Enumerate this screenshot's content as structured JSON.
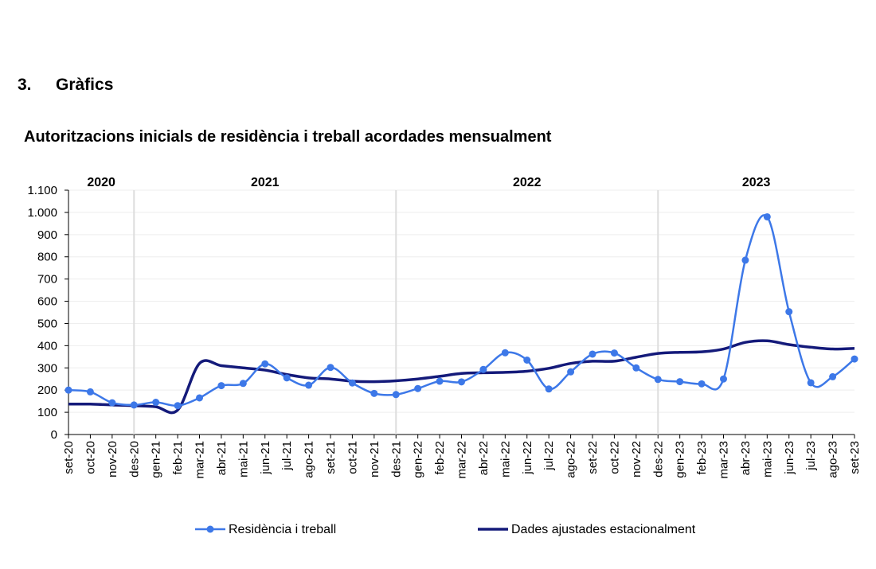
{
  "heading": {
    "number": "3.",
    "text": "Gràfics"
  },
  "chart_data": {
    "type": "line",
    "title": "Autoritzacions inicials de residència i treball acordades mensualment",
    "year_labels": [
      "2020",
      "2021",
      "2022",
      "2023"
    ],
    "categories": [
      "set-20",
      "oct-20",
      "nov-20",
      "des-20",
      "gen-21",
      "feb-21",
      "mar-21",
      "abr-21",
      "mai-21",
      "jun-21",
      "jul-21",
      "ago-21",
      "set-21",
      "oct-21",
      "nov-21",
      "des-21",
      "gen-22",
      "feb-22",
      "mar-22",
      "abr-22",
      "mai-22",
      "jun-22",
      "jul-22",
      "ago-22",
      "set-22",
      "oct-22",
      "nov-22",
      "des-22",
      "gen-23",
      "feb-23",
      "mar-23",
      "abr-23",
      "mai-23",
      "jun-23",
      "jul-23",
      "ago-23",
      "set-23"
    ],
    "series": [
      {
        "name": "Residència i treball",
        "color": "#3d78e8",
        "markers": true,
        "values": [
          200,
          192,
          143,
          133,
          145,
          130,
          165,
          220,
          230,
          318,
          255,
          222,
          302,
          232,
          185,
          180,
          207,
          240,
          237,
          293,
          368,
          335,
          205,
          282,
          362,
          367,
          300,
          248,
          238,
          228,
          250,
          785,
          980,
          553,
          233,
          260,
          340
        ]
      },
      {
        "name": "Dades ajustades estacionalment",
        "color": "#141a7a",
        "markers": false,
        "values": [
          137,
          137,
          133,
          130,
          125,
          110,
          320,
          310,
          300,
          290,
          270,
          255,
          250,
          240,
          238,
          242,
          250,
          262,
          275,
          278,
          280,
          285,
          298,
          320,
          330,
          330,
          348,
          365,
          370,
          372,
          385,
          415,
          422,
          405,
          393,
          385,
          388
        ]
      }
    ],
    "ylim": [
      0,
      1100
    ],
    "yticks": [
      0,
      100,
      200,
      300,
      400,
      500,
      600,
      700,
      800,
      900,
      {
        "value": 1000,
        "label": "1.000"
      },
      {
        "value": 1100,
        "label": "1.100"
      }
    ],
    "grid": true
  }
}
